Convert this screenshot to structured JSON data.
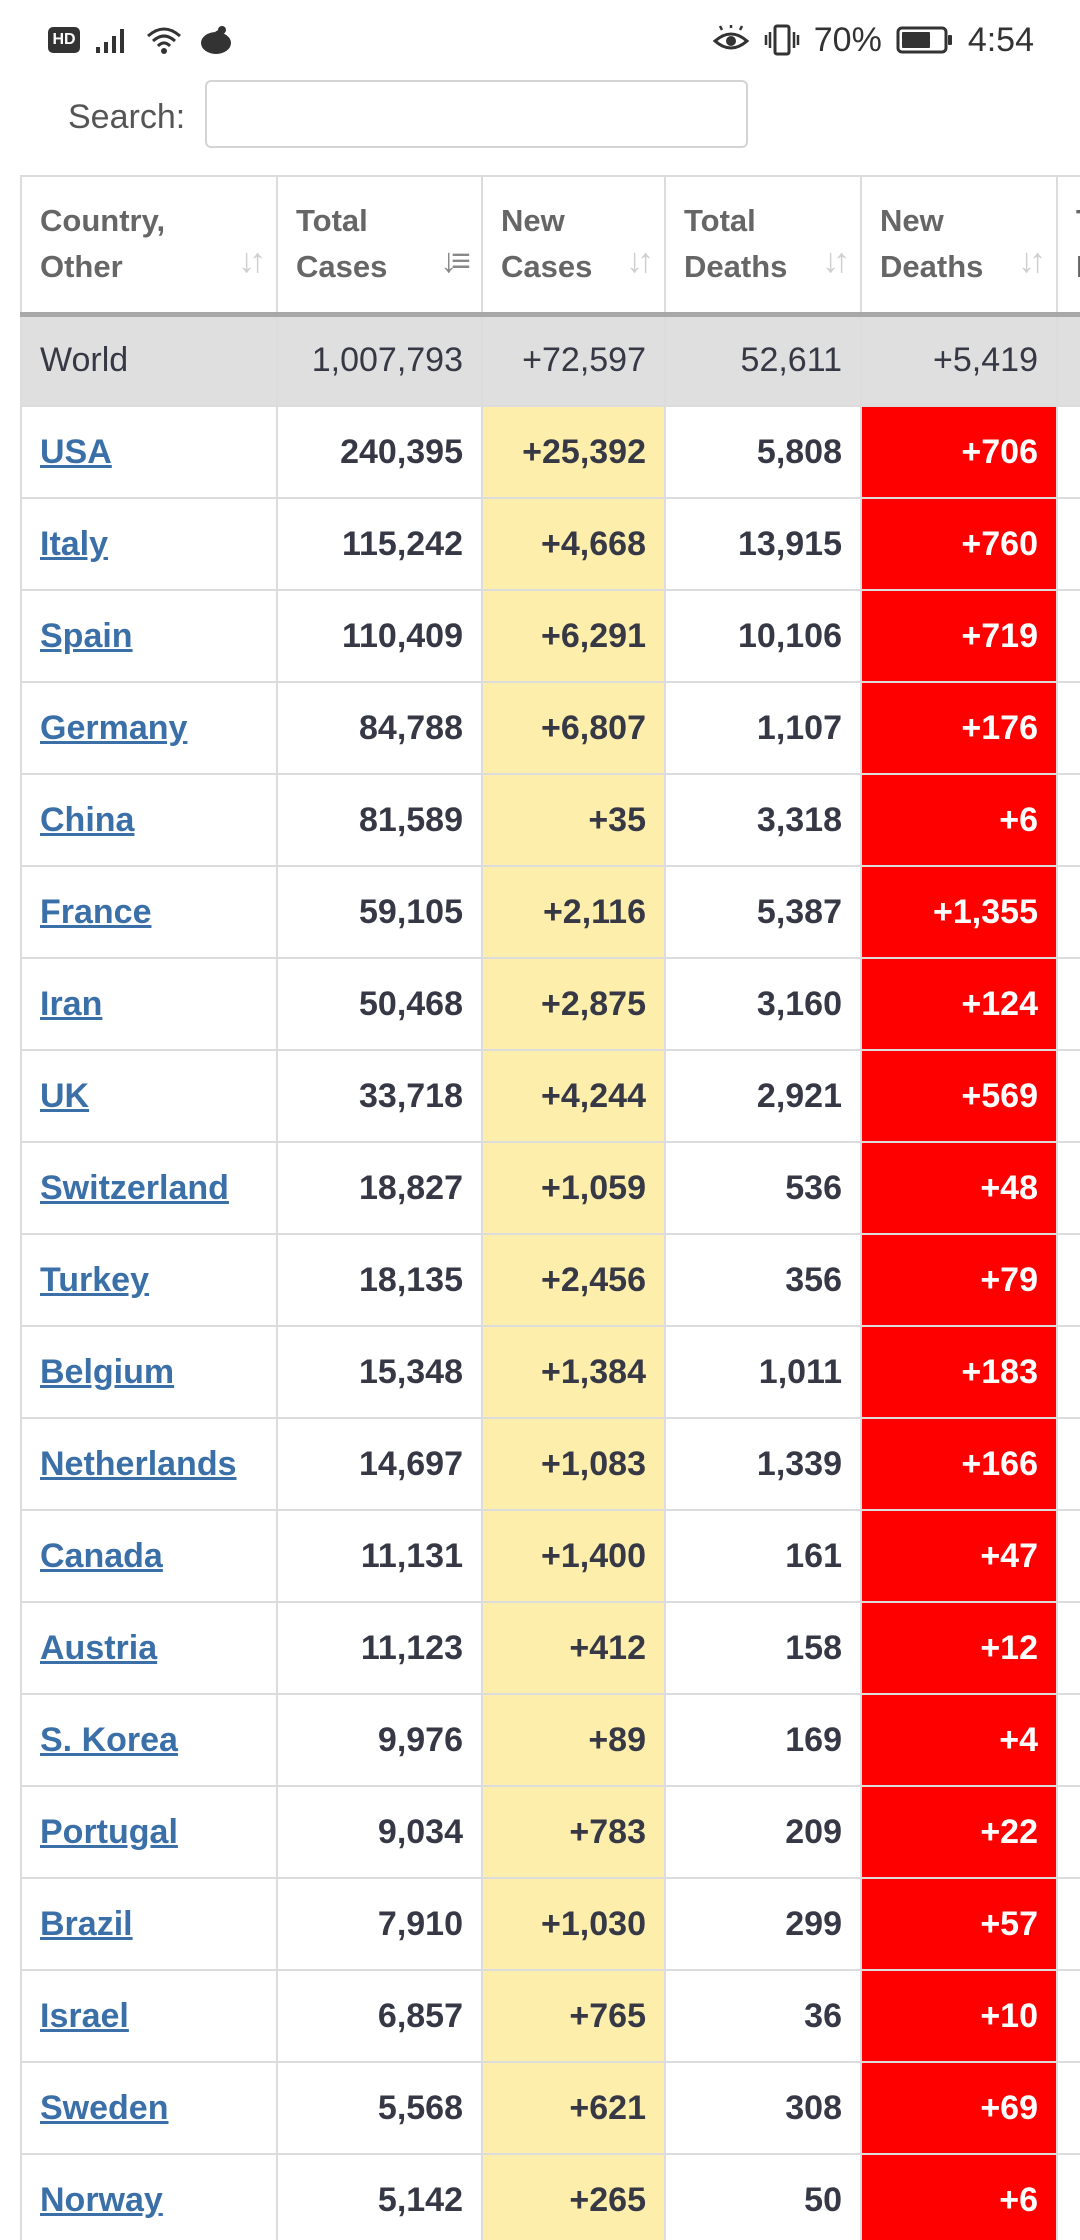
{
  "status_bar": {
    "left": {
      "hd_label": "HD"
    },
    "right": {
      "battery_percent": "70%",
      "time": "4:54"
    }
  },
  "search": {
    "label": "Search:",
    "value": "",
    "placeholder": ""
  },
  "table": {
    "headers": [
      {
        "line1": "Country,",
        "line2": "Other",
        "sort": "none"
      },
      {
        "line1": "Total",
        "line2": "Cases",
        "sort": "desc"
      },
      {
        "line1": "New",
        "line2": "Cases",
        "sort": "none"
      },
      {
        "line1": "Total",
        "line2": "Deaths",
        "sort": "none"
      },
      {
        "line1": "New",
        "line2": "Deaths",
        "sort": "none"
      },
      {
        "line1": "T",
        "line2": "R",
        "sort": "none"
      }
    ],
    "world": {
      "country": "World",
      "total_cases": "1,007,793",
      "new_cases": "+72,597",
      "total_deaths": "52,611",
      "new_deaths": "+5,419"
    },
    "rows": [
      {
        "country": "USA",
        "total_cases": "240,395",
        "new_cases": "+25,392",
        "total_deaths": "5,808",
        "new_deaths": "+706"
      },
      {
        "country": "Italy",
        "total_cases": "115,242",
        "new_cases": "+4,668",
        "total_deaths": "13,915",
        "new_deaths": "+760"
      },
      {
        "country": "Spain",
        "total_cases": "110,409",
        "new_cases": "+6,291",
        "total_deaths": "10,106",
        "new_deaths": "+719"
      },
      {
        "country": "Germany",
        "total_cases": "84,788",
        "new_cases": "+6,807",
        "total_deaths": "1,107",
        "new_deaths": "+176"
      },
      {
        "country": "China",
        "total_cases": "81,589",
        "new_cases": "+35",
        "total_deaths": "3,318",
        "new_deaths": "+6"
      },
      {
        "country": "France",
        "total_cases": "59,105",
        "new_cases": "+2,116",
        "total_deaths": "5,387",
        "new_deaths": "+1,355"
      },
      {
        "country": "Iran",
        "total_cases": "50,468",
        "new_cases": "+2,875",
        "total_deaths": "3,160",
        "new_deaths": "+124"
      },
      {
        "country": "UK",
        "total_cases": "33,718",
        "new_cases": "+4,244",
        "total_deaths": "2,921",
        "new_deaths": "+569"
      },
      {
        "country": "Switzerland",
        "total_cases": "18,827",
        "new_cases": "+1,059",
        "total_deaths": "536",
        "new_deaths": "+48"
      },
      {
        "country": "Turkey",
        "total_cases": "18,135",
        "new_cases": "+2,456",
        "total_deaths": "356",
        "new_deaths": "+79"
      },
      {
        "country": "Belgium",
        "total_cases": "15,348",
        "new_cases": "+1,384",
        "total_deaths": "1,011",
        "new_deaths": "+183"
      },
      {
        "country": "Netherlands",
        "total_cases": "14,697",
        "new_cases": "+1,083",
        "total_deaths": "1,339",
        "new_deaths": "+166"
      },
      {
        "country": "Canada",
        "total_cases": "11,131",
        "new_cases": "+1,400",
        "total_deaths": "161",
        "new_deaths": "+47"
      },
      {
        "country": "Austria",
        "total_cases": "11,123",
        "new_cases": "+412",
        "total_deaths": "158",
        "new_deaths": "+12"
      },
      {
        "country": "S. Korea",
        "total_cases": "9,976",
        "new_cases": "+89",
        "total_deaths": "169",
        "new_deaths": "+4"
      },
      {
        "country": "Portugal",
        "total_cases": "9,034",
        "new_cases": "+783",
        "total_deaths": "209",
        "new_deaths": "+22"
      },
      {
        "country": "Brazil",
        "total_cases": "7,910",
        "new_cases": "+1,030",
        "total_deaths": "299",
        "new_deaths": "+57"
      },
      {
        "country": "Israel",
        "total_cases": "6,857",
        "new_cases": "+765",
        "total_deaths": "36",
        "new_deaths": "+10"
      },
      {
        "country": "Sweden",
        "total_cases": "5,568",
        "new_cases": "+621",
        "total_deaths": "308",
        "new_deaths": "+69"
      },
      {
        "country": "Norway",
        "total_cases": "5,142",
        "new_cases": "+265",
        "total_deaths": "50",
        "new_deaths": "+6"
      }
    ]
  },
  "colors": {
    "new_cases_bg": "#feeeac",
    "new_deaths_bg": "#ff0000",
    "link": "#3a6fa8",
    "world_row_bg": "#dfdfdf"
  },
  "icons": [
    "hd-icon",
    "signal-icon",
    "wifi-icon",
    "notification-icon",
    "eye-comfort-icon",
    "vibrate-icon",
    "battery-icon",
    "sort-icon"
  ]
}
